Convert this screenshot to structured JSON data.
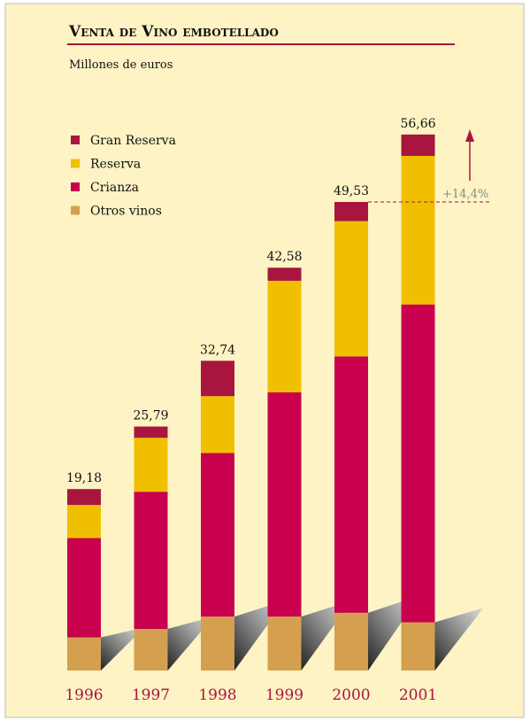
{
  "chart_data": {
    "type": "stacked_bar",
    "title": "Venta de Vino embotellado",
    "subtitle": "Millones de euros",
    "categories": [
      "1996",
      "1997",
      "1998",
      "1999",
      "2000",
      "2001"
    ],
    "series": [
      {
        "name": "Otros vinos",
        "color": "#d4a050",
        "values": [
          3.5,
          4.4,
          5.7,
          5.7,
          6.1,
          5.1
        ]
      },
      {
        "name": "Crianza",
        "color": "#c8004e",
        "values": [
          10.5,
          14.5,
          17.3,
          23.7,
          27.1,
          33.6
        ]
      },
      {
        "name": "Reserva",
        "color": "#f0c000",
        "values": [
          3.5,
          5.7,
          6.0,
          11.8,
          14.3,
          15.7
        ]
      },
      {
        "name": "Gran Reserva",
        "color": "#a8163f",
        "values": [
          1.68,
          1.19,
          3.74,
          1.38,
          2.03,
          2.26
        ]
      }
    ],
    "totals": [
      19.18,
      25.79,
      32.74,
      42.58,
      49.53,
      56.66
    ],
    "total_labels": [
      "19,18",
      "25,79",
      "32,74",
      "42,58",
      "49,53",
      "56,66"
    ],
    "annotation": "+14,4%"
  }
}
